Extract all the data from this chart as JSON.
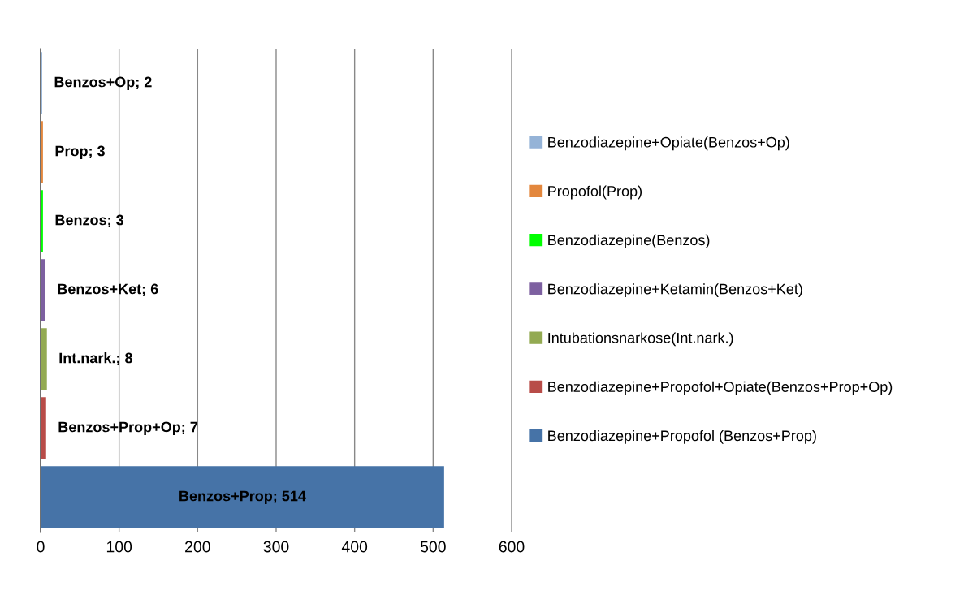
{
  "chart_data": {
    "type": "bar",
    "orientation": "horizontal",
    "categories": [
      null,
      null,
      null,
      null,
      null,
      null,
      null
    ],
    "series": [
      {
        "name": "Benzodiazepine+Opiate(Benzos+Op)",
        "color": "#95b3d7",
        "values": [
          2,
          null,
          null,
          null,
          null,
          null,
          null
        ],
        "value_labels": [
          "Benzos+Op; 2",
          null,
          null,
          null,
          null,
          null,
          null
        ]
      },
      {
        "name": "Propofol(Prop)",
        "color": "#e3873d",
        "values": [
          null,
          3,
          null,
          null,
          null,
          null,
          null
        ],
        "value_labels": [
          null,
          "Prop; 3",
          null,
          null,
          null,
          null,
          null
        ]
      },
      {
        "name": "Benzodiazepine(Benzos)",
        "color": "#00ff00",
        "values": [
          null,
          null,
          3,
          null,
          null,
          null,
          null
        ],
        "value_labels": [
          null,
          null,
          "Benzos; 3",
          null,
          null,
          null,
          null
        ]
      },
      {
        "name": "Benzodiazepine+Ketamin(Benzos+Ket)",
        "color": "#7d60a0",
        "values": [
          null,
          null,
          null,
          6,
          null,
          null,
          null
        ],
        "value_labels": [
          null,
          null,
          null,
          "Benzos+Ket; 6",
          null,
          null,
          null
        ]
      },
      {
        "name": "Intubationsnarkose(Int.nark.)",
        "color": "#93aa52",
        "values": [
          null,
          null,
          null,
          null,
          8,
          null,
          null
        ],
        "value_labels": [
          null,
          null,
          null,
          null,
          "Int.nark.; 8",
          null,
          null
        ]
      },
      {
        "name": "Benzodiazepine+Propofol+Opiate(Benzos+Prop+Op)",
        "color": "#b84c48",
        "values": [
          null,
          null,
          null,
          null,
          null,
          7,
          null
        ],
        "value_labels": [
          null,
          null,
          null,
          null,
          null,
          "Benzos+Prop+Op; 7",
          null
        ]
      },
      {
        "name": "Benzodiazepine+Propofol (Benzos+Prop)",
        "color": "#4673a7",
        "values": [
          null,
          null,
          null,
          null,
          null,
          null,
          514
        ],
        "value_labels": [
          null,
          null,
          null,
          null,
          null,
          null,
          "Benzos+Prop; 514"
        ]
      }
    ],
    "xlim": [
      0,
      600
    ],
    "xticks": [
      0,
      100,
      200,
      300,
      400,
      500,
      600
    ],
    "grid": "x",
    "legend": "right"
  }
}
